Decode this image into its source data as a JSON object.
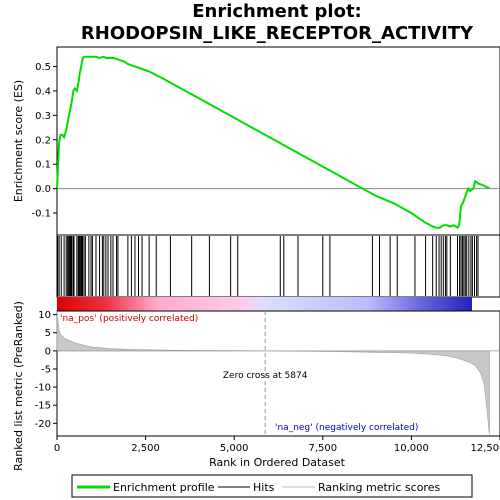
{
  "chart_data": {
    "type": "line",
    "title_line1": "Enrichment plot:",
    "title_line2": "RHODOPSIN_LIKE_RECEPTOR_ACTIVITY",
    "top_panel": {
      "ylabel": "Enrichment score (ES)",
      "ylim": [
        -0.19,
        0.58
      ],
      "yticks": [
        -0.1,
        0.0,
        0.1,
        0.2,
        0.3,
        0.4,
        0.5
      ],
      "ytick_labels": [
        "-0.1",
        "0.0",
        "0.1",
        "0.2",
        "0.3",
        "0.4",
        "0.5"
      ],
      "series_name": "Enrichment profile",
      "color": "#00dd00",
      "x": [
        0,
        30,
        60,
        100,
        150,
        200,
        260,
        300,
        340,
        380,
        420,
        460,
        500,
        560,
        600,
        640,
        680,
        720,
        760,
        800,
        900,
        1000,
        1100,
        1200,
        1300,
        1400,
        1500,
        1600,
        1700,
        1800,
        1900,
        2000,
        2200,
        2400,
        2600,
        2800,
        3000,
        3500,
        4000,
        4500,
        5000,
        5500,
        6000,
        6500,
        7000,
        7500,
        8000,
        8500,
        9000,
        9500,
        10000,
        10200,
        10400,
        10600,
        10700,
        10800,
        10900,
        11000,
        11100,
        11200,
        11300,
        11350,
        11400,
        11450,
        11500,
        11550,
        11600,
        11650,
        11700,
        11750,
        11800,
        11850,
        11900,
        12000,
        12100,
        12200
      ],
      "y": [
        0.0,
        0.1,
        0.19,
        0.22,
        0.22,
        0.21,
        0.24,
        0.27,
        0.3,
        0.33,
        0.36,
        0.4,
        0.41,
        0.4,
        0.43,
        0.47,
        0.5,
        0.53,
        0.54,
        0.54,
        0.54,
        0.54,
        0.54,
        0.535,
        0.54,
        0.535,
        0.535,
        0.535,
        0.53,
        0.525,
        0.52,
        0.51,
        0.5,
        0.49,
        0.48,
        0.465,
        0.45,
        0.41,
        0.37,
        0.33,
        0.29,
        0.25,
        0.21,
        0.17,
        0.13,
        0.09,
        0.05,
        0.01,
        -0.03,
        -0.06,
        -0.1,
        -0.12,
        -0.14,
        -0.155,
        -0.16,
        -0.16,
        -0.15,
        -0.15,
        -0.155,
        -0.15,
        -0.16,
        -0.15,
        -0.07,
        -0.06,
        -0.04,
        -0.02,
        0.0,
        -0.01,
        -0.005,
        0.0,
        0.03,
        0.025,
        0.02,
        0.015,
        0.008,
        0.002
      ]
    },
    "hits_panel": {
      "series_name": "Hits",
      "hit_positions": [
        20,
        60,
        120,
        200,
        260,
        300,
        330,
        350,
        380,
        400,
        420,
        460,
        480,
        560,
        600,
        620,
        650,
        680,
        700,
        720,
        760,
        800,
        900,
        960,
        1000,
        1100,
        1200,
        1280,
        1320,
        1380,
        1440,
        1520,
        1580,
        1680,
        1720,
        2000,
        2100,
        2200,
        2300,
        2400,
        2600,
        2800,
        3200,
        3800,
        4300,
        4900,
        5100,
        6300,
        6400,
        6800,
        7500,
        7700,
        8900,
        9100,
        9400,
        9600,
        10100,
        10400,
        10600,
        10700,
        10780,
        10840,
        10900,
        10960,
        11000,
        11100,
        11300,
        11360,
        11400,
        11440,
        11480,
        11520,
        11560,
        11620,
        11680,
        11720,
        11780,
        11840,
        11880
      ]
    },
    "bottom_panel": {
      "ylabel": "Ranked list metric (PreRanked)",
      "xlabel": "Rank in Ordered Dataset",
      "series_name": "Ranking metric scores",
      "ylim": [
        -23.5,
        11
      ],
      "yticks": [
        -20,
        -15,
        -10,
        -5,
        0,
        5,
        10
      ],
      "ytick_labels": [
        "-20",
        "-15",
        "-10",
        "-5",
        "0",
        "5",
        "10"
      ],
      "metric_x": [
        0,
        50,
        100,
        200,
        300,
        500,
        800,
        1000,
        1500,
        2000,
        3000,
        4000,
        5000,
        5874,
        7000,
        8000,
        9000,
        10000,
        10500,
        11000,
        11300,
        11600,
        11800,
        11950,
        12050,
        12100,
        12150,
        12200
      ],
      "metric_y": [
        11,
        6,
        4.5,
        3.5,
        3,
        2.2,
        1.4,
        1.0,
        0.6,
        0.4,
        0.2,
        0.1,
        0.05,
        0,
        -0.1,
        -0.2,
        -0.4,
        -0.6,
        -0.9,
        -1.4,
        -2.0,
        -3.0,
        -4.0,
        -6.0,
        -9.0,
        -13,
        -18,
        -23
      ],
      "zero_cross_label": "Zero cross at 5874",
      "zero_cross_x": 5874,
      "pos_label": "'na_pos' (positively correlated)",
      "neg_label": "'na_neg' (negatively correlated)",
      "pos_color": "#cc0000",
      "neg_color": "#0000cc"
    },
    "x_axis": {
      "xlim": [
        0,
        12500
      ],
      "xticks": [
        0,
        2500,
        5000,
        7500,
        10000,
        12500
      ],
      "xtick_labels": [
        "0",
        "2,500",
        "5,000",
        "7,500",
        "10,000",
        "12,500"
      ]
    },
    "gradient_bar": {
      "stops": [
        "#dd0000",
        "#ff6677",
        "#ffccee",
        "#ddddff",
        "#7777ee",
        "#2222bb"
      ]
    },
    "legend": [
      {
        "label": "Enrichment profile",
        "color": "#00dd00"
      },
      {
        "label": "Hits",
        "color": "#000000"
      },
      {
        "label": "Ranking metric scores",
        "color": "#bbbbbb"
      }
    ]
  }
}
